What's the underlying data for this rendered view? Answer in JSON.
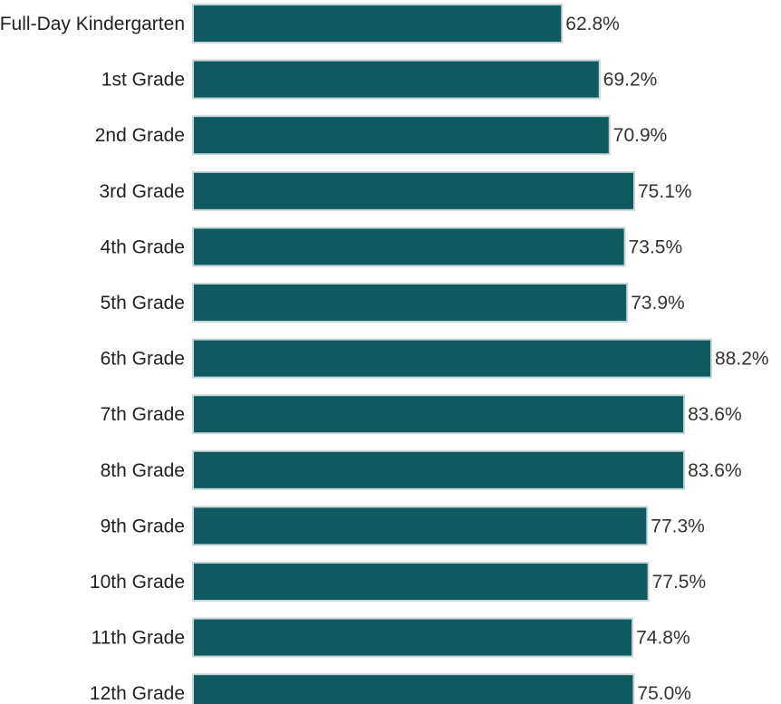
{
  "chart_data": {
    "type": "bar",
    "orientation": "horizontal",
    "title": "",
    "xlabel": "",
    "ylabel": "",
    "categories": [
      "Full-Day Kindergarten",
      "1st Grade",
      "2nd Grade",
      "3rd Grade",
      "4th Grade",
      "5th Grade",
      "6th Grade",
      "7th Grade",
      "8th Grade",
      "9th Grade",
      "10th Grade",
      "11th Grade",
      "12th Grade"
    ],
    "values": [
      62.8,
      69.2,
      70.9,
      75.1,
      73.5,
      73.9,
      88.2,
      83.6,
      83.6,
      77.3,
      77.5,
      74.8,
      75.0
    ],
    "value_labels": [
      "62.8%",
      "69.2%",
      "70.9%",
      "75.1%",
      "73.5%",
      "73.9%",
      "88.2%",
      "83.6%",
      "83.6%",
      "77.3%",
      "77.5%",
      "74.8%",
      "75.0%"
    ],
    "xlim": [
      0,
      100
    ],
    "grid": false,
    "legend": "none",
    "colors": {
      "bar": "#0f5a5e",
      "bar_outline": "#c9d6d8",
      "category_text": "#222222",
      "value_text": "#333333"
    }
  }
}
